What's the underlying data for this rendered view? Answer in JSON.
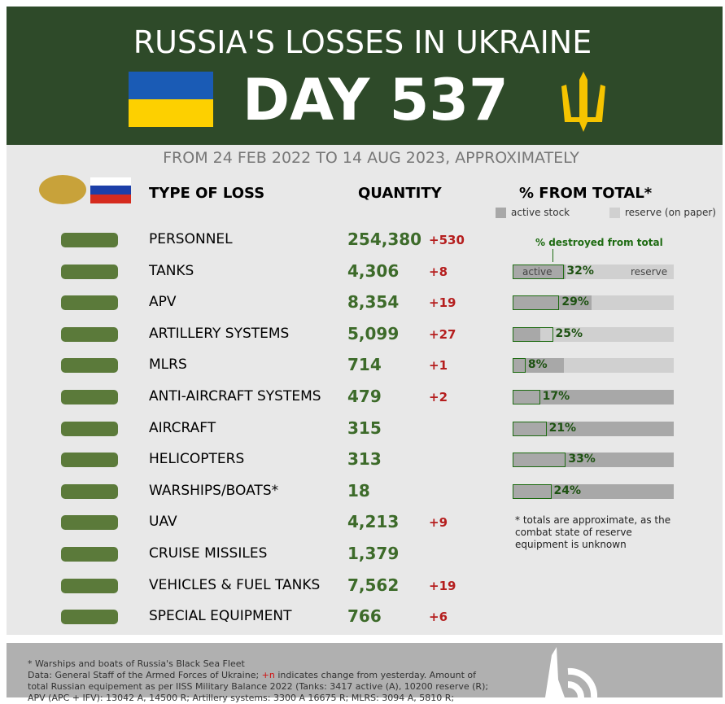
{
  "header": {
    "title": "RUSSIA'S LOSSES IN UKRAINE",
    "day": "DAY 537"
  },
  "subtitle": "FROM 24 FEB 2022 TO 14 AUG 2023, APPROXIMATELY",
  "columns": {
    "type": "TYPE OF LOSS",
    "quantity": "QUANTITY",
    "percent": "% FROM TOTAL*"
  },
  "legend": {
    "active": "active stock",
    "reserve": "reserve (on paper)"
  },
  "annotation": {
    "destroyed": "% destroyed from total",
    "active": "active",
    "reserve": "reserve"
  },
  "rows": [
    {
      "name": "PERSONNEL",
      "quantity": "254,380",
      "change": "+530"
    },
    {
      "name": "TANKS",
      "quantity": "4,306",
      "change": "+8",
      "active_share": 33,
      "pct": 32,
      "pct_label": "32%"
    },
    {
      "name": "APV",
      "quantity": "8,354",
      "change": "+19",
      "active_share": 49,
      "pct": 29,
      "pct_label": "29%"
    },
    {
      "name": "ARTILLERY SYSTEMS",
      "quantity": "5,099",
      "change": "+27",
      "active_share": 17,
      "pct": 25,
      "pct_label": "25%"
    },
    {
      "name": "MLRS",
      "quantity": "714",
      "change": "+1",
      "active_share": 32,
      "pct": 8,
      "pct_label": "8%"
    },
    {
      "name": "ANTI-AIRCRAFT SYSTEMS",
      "quantity": "479",
      "change": "+2",
      "active_share": 100,
      "pct": 17,
      "pct_label": "17%"
    },
    {
      "name": "AIRCRAFT",
      "quantity": "315",
      "active_share": 100,
      "pct": 21,
      "pct_label": "21%"
    },
    {
      "name": "HELICOPTERS",
      "quantity": "313",
      "active_share": 100,
      "pct": 33,
      "pct_label": "33%"
    },
    {
      "name": "WARSHIPS/BOATS*",
      "quantity": "18",
      "active_share": 100,
      "pct": 24,
      "pct_label": "24%"
    },
    {
      "name": "UAV",
      "quantity": "4,213",
      "change": "+9"
    },
    {
      "name": "CRUISE MISSILES",
      "quantity": "1,379"
    },
    {
      "name": "VEHICLES & FUEL TANKS",
      "quantity": "7,562",
      "change": "+19"
    },
    {
      "name": "SPECIAL EQUIPMENT",
      "quantity": "766",
      "change": "+6"
    }
  ],
  "note": "* totals are approximate, as the combat state of reserve equipment is unknown",
  "footer": {
    "line1": "* Warships and boats of Russia's Black Sea Fleet",
    "line2a": "Data: General Staff of the Armed Forces of Ukraine; ",
    "line2b": "+n",
    "line2c": " indicates change from yesterday. Amount of",
    "line3": "total Russian equipement as per IISS Military Balance 2022 (Tanks: 3417 active (A), 10200 reserve (R);",
    "line4": "APV (APC + IFV): 13042 A, 14500 R; Artillery systems: 3300 A 16675 R; MLRS: 3094 A, 5810 R;"
  }
}
